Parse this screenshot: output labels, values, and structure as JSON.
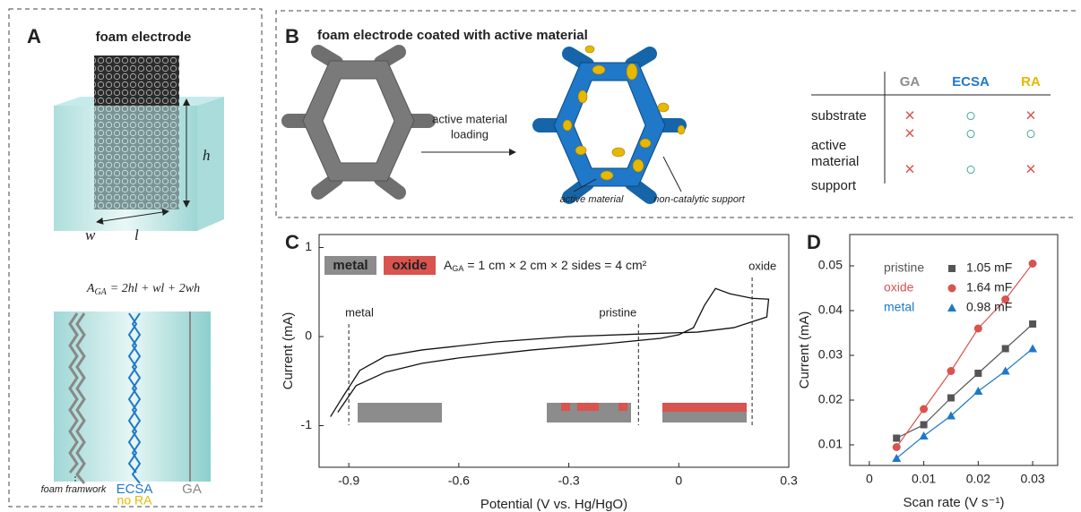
{
  "panel_a": {
    "letter": "A",
    "title": "foam electrode",
    "dims": {
      "h": "h",
      "w": "w",
      "l": "l"
    },
    "formula": {
      "symbol": "A",
      "subscript": "GA",
      "rest": "= 2hl + wl + 2wh"
    },
    "labels": {
      "framework": "foam framwork",
      "ecsa": "ECSA",
      "no_ra": "no RA",
      "ga": "GA"
    }
  },
  "panel_b": {
    "letter": "B",
    "title": "foam electrode coated with active material",
    "arrow_label": [
      "active material",
      "loading"
    ],
    "callouts": [
      "active material",
      "non-catalytic support"
    ],
    "table": {
      "columns": [
        "GA",
        "ECSA",
        "RA"
      ],
      "rows": [
        {
          "label": [
            "substrate"
          ],
          "cells": [
            "×",
            "○",
            "×"
          ]
        },
        {
          "label": [
            "active",
            "material"
          ],
          "cells": [
            "×",
            "○",
            "○"
          ]
        },
        {
          "label": [
            "support"
          ],
          "cells": [
            "×",
            "○",
            "×"
          ]
        }
      ]
    }
  },
  "chart_data": [
    {
      "type": "line",
      "letter": "C",
      "xlabel": "Potential (V vs. Hg/HgO)",
      "ylabel": "Current (mA)",
      "xlim": [
        -0.981,
        0.3
      ],
      "ylim": [
        -1.467,
        1.146
      ],
      "xticks": [
        -0.9,
        -0.6,
        -0.3,
        0,
        0.3
      ],
      "yticks": [
        -1,
        0,
        1
      ],
      "legend": [
        {
          "name": "metal",
          "color": "#8c8c8c"
        },
        {
          "name": "oxide",
          "color": "#d9534f"
        }
      ],
      "annotation": {
        "symbol": "A",
        "subscript": "GA",
        "rest": "= 1 cm × 2 cm × 2 sides = 4 cm²"
      },
      "markers": [
        {
          "label": "metal",
          "x": -0.9
        },
        {
          "label": "pristine",
          "x": -0.11
        },
        {
          "label": "oxide",
          "x": 0.2
        }
      ],
      "series": [
        {
          "color": "#111111",
          "x": [
            -0.93,
            -0.88,
            -0.8,
            -0.7,
            -0.6,
            -0.4,
            -0.2,
            -0.05,
            0.0,
            0.04,
            0.07,
            0.1,
            0.14,
            0.2,
            0.245,
            0.24,
            0.15,
            0.05,
            -0.1,
            -0.3,
            -0.5,
            -0.7,
            -0.8,
            -0.87,
            -0.92,
            -0.95
          ],
          "y": [
            -0.85,
            -0.55,
            -0.4,
            -0.3,
            -0.24,
            -0.15,
            -0.08,
            -0.02,
            0.02,
            0.1,
            0.35,
            0.54,
            0.48,
            0.43,
            0.42,
            0.22,
            0.1,
            0.05,
            0.03,
            0.0,
            -0.06,
            -0.15,
            -0.22,
            -0.38,
            -0.7,
            -0.9
          ]
        }
      ]
    },
    {
      "type": "scatter",
      "letter": "D",
      "xlabel": "Scan rate (V s⁻¹)",
      "ylabel": "Current (mA)",
      "xlim": [
        -0.0036,
        0.0346
      ],
      "ylim": [
        0.0054,
        0.057
      ],
      "xticks": [
        0,
        0.01,
        0.02,
        0.03
      ],
      "yticks": [
        0.01,
        0.02,
        0.03,
        0.04,
        0.05
      ],
      "x": [
        0.005,
        0.01,
        0.015,
        0.02,
        0.025,
        0.03
      ],
      "series": [
        {
          "name": "pristine",
          "label": "1.05 mF",
          "color": "#555555",
          "marker": "square",
          "values": [
            0.0115,
            0.0145,
            0.0205,
            0.026,
            0.0315,
            0.037
          ]
        },
        {
          "name": "oxide",
          "label": "1.64 mF",
          "color": "#d9534f",
          "marker": "circle",
          "values": [
            0.0095,
            0.018,
            0.0265,
            0.036,
            0.0425,
            0.0505
          ]
        },
        {
          "name": "metal",
          "label": "0.98 mF",
          "color": "#1f78c8",
          "marker": "triangle",
          "values": [
            0.007,
            0.012,
            0.0165,
            0.022,
            0.0265,
            0.0315
          ]
        }
      ]
    }
  ]
}
